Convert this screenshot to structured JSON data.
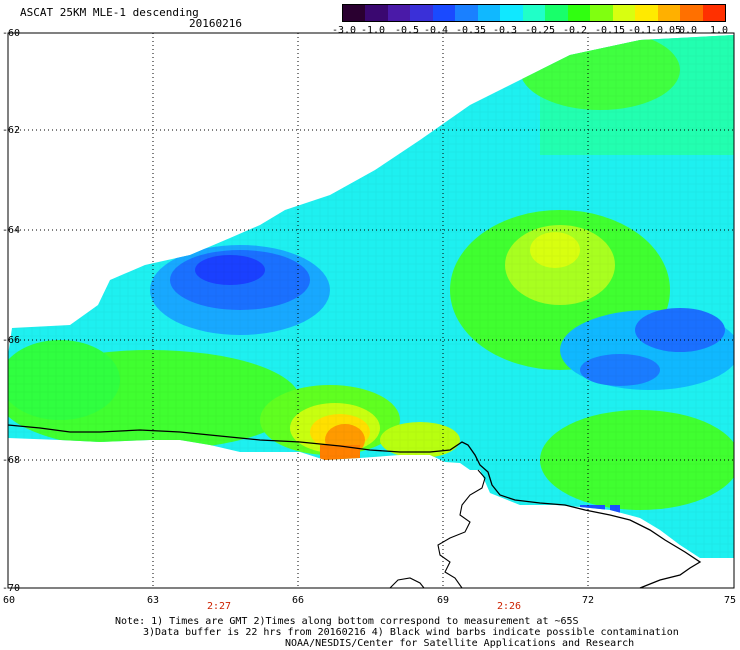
{
  "header": {
    "title": "ASCAT 25KM MLE-1 descending",
    "date": "20160216"
  },
  "colorbar": {
    "labels": [
      "-3.0",
      "-1.0",
      "-0.5",
      "-0.4",
      "-0.35",
      "-0.3",
      "-0.25",
      "-0.2",
      "-0.15",
      "-0.1",
      "-0.05",
      "0.0",
      "1.0"
    ],
    "colors": [
      "#2a0030",
      "#3a0870",
      "#4a1aa8",
      "#3a30d8",
      "#1a4aff",
      "#1a80ff",
      "#10b8ff",
      "#10e8ff",
      "#20ffc8",
      "#18ff6a",
      "#30ff10",
      "#80ff10",
      "#d8ff10",
      "#ffea00",
      "#ffb000",
      "#ff7000",
      "#ff3000"
    ]
  },
  "map": {
    "lat_labels": [
      "-60",
      "-62",
      "-64",
      "-66",
      "-68",
      "-70"
    ],
    "lon_labels": [
      "60",
      "63",
      "66",
      "69",
      "72",
      "75"
    ],
    "time_labels": [
      "2:27",
      "2:26"
    ],
    "value_range": [
      -3.0,
      1.0
    ]
  },
  "notes": [
    "Note: 1) Times are GMT 2)Times along bottom correspond to measurement at ~65S",
    "3)Data buffer is 22 hrs from 20160216 4) Black wind barbs indicate possible contamination",
    "NOAA/NESDIS/Center for Satellite Applications and Research"
  ]
}
